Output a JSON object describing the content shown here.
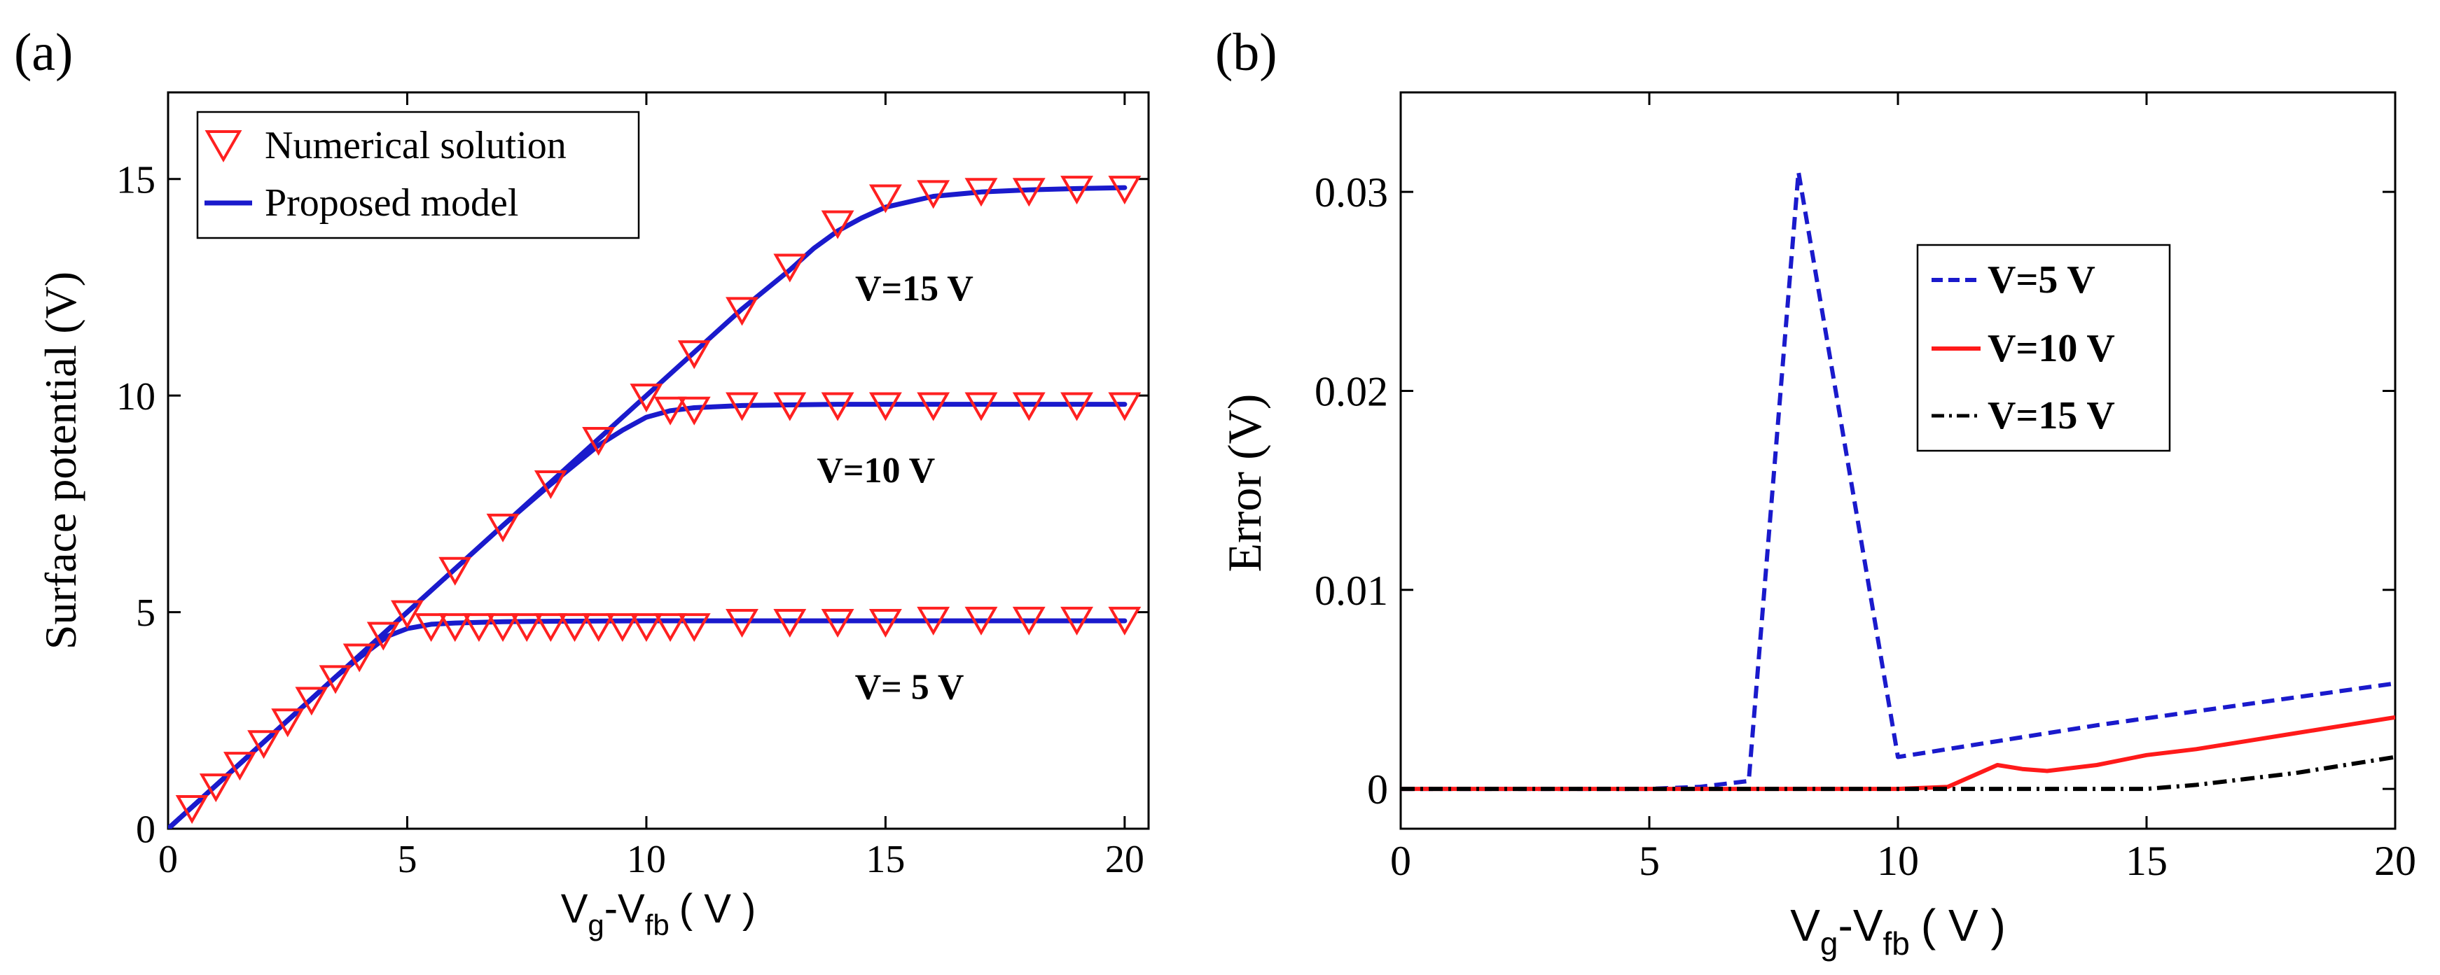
{
  "figure": {
    "panel_labels": [
      "(a)",
      "(b)"
    ]
  },
  "chart_data": [
    {
      "id": "a",
      "type": "line",
      "ylabel": "Surface potential (V)",
      "xlabel": {
        "main": "V",
        "sub1": "g",
        "dash": "-V",
        "sub2": "fb",
        "unit": "( V )"
      },
      "xlim": [
        0,
        20.5
      ],
      "ylim": [
        0,
        17
      ],
      "xticks": [
        0,
        5,
        10,
        15,
        20
      ],
      "yticks": [
        0,
        5,
        10,
        15
      ],
      "grid": false,
      "legend": {
        "placement": "top-left",
        "entries": [
          {
            "label": "Numerical solution",
            "marker": "triangle-down",
            "color": "#ff2020"
          },
          {
            "label": "Proposed model",
            "marker": "line",
            "color": "#1a1acc"
          }
        ]
      },
      "annotations": [
        {
          "text": "V=15 V",
          "x": 15.6,
          "y": 12.2
        },
        {
          "text": "V=10 V",
          "x": 14.8,
          "y": 8.0
        },
        {
          "text": "V= 5 V",
          "x": 15.5,
          "y": 3.0
        }
      ],
      "series": [
        {
          "name": "Numerical solution",
          "role": "markers",
          "color": "#ff2020",
          "group": "V=5 V",
          "x": [
            0.5,
            1,
            1.5,
            2,
            2.5,
            3,
            3.5,
            4,
            4.5,
            5,
            5.5,
            6,
            6.5,
            7,
            7.5,
            8,
            8.5,
            9,
            9.5,
            10,
            10.5,
            11,
            12,
            13,
            14,
            15,
            16,
            17,
            18,
            19,
            20
          ],
          "y": [
            0.5,
            1,
            1.5,
            2,
            2.5,
            3,
            3.5,
            4,
            4.5,
            5,
            4.7,
            4.7,
            4.7,
            4.7,
            4.7,
            4.7,
            4.7,
            4.7,
            4.7,
            4.7,
            4.7,
            4.7,
            4.8,
            4.8,
            4.8,
            4.8,
            4.85,
            4.85,
            4.85,
            4.85,
            4.85
          ]
        },
        {
          "name": "Numerical solution",
          "role": "markers",
          "color": "#ff2020",
          "group": "V=10 V",
          "x": [
            6,
            7,
            8,
            9,
            10,
            10.5,
            11,
            12,
            13,
            14,
            15,
            16,
            17,
            18,
            19,
            20
          ],
          "y": [
            6,
            7,
            8,
            9,
            10,
            9.7,
            9.7,
            9.8,
            9.8,
            9.8,
            9.8,
            9.8,
            9.8,
            9.8,
            9.8,
            9.8
          ]
        },
        {
          "name": "Numerical solution",
          "role": "markers",
          "color": "#ff2020",
          "group": "V=15 V",
          "x": [
            11,
            12,
            13,
            14,
            15,
            16,
            17,
            18,
            19,
            20
          ],
          "y": [
            11,
            12,
            13,
            14,
            14.6,
            14.7,
            14.75,
            14.75,
            14.8,
            14.8
          ]
        },
        {
          "name": "Proposed model",
          "role": "line",
          "color": "#1a1acc",
          "group": "V=5 V",
          "x": [
            0,
            1,
            2,
            3,
            3.5,
            4,
            4.3,
            4.6,
            5,
            5.5,
            6,
            7,
            8,
            10,
            12,
            15,
            20
          ],
          "y": [
            0,
            1,
            2,
            3,
            3.5,
            3.95,
            4.2,
            4.45,
            4.62,
            4.72,
            4.75,
            4.78,
            4.79,
            4.8,
            4.8,
            4.8,
            4.8
          ]
        },
        {
          "name": "Proposed model",
          "role": "line",
          "color": "#1a1acc",
          "group": "V=10 V",
          "x": [
            0,
            4,
            5,
            6,
            7,
            8,
            8.5,
            9,
            9.5,
            10,
            10.5,
            11,
            12,
            14,
            20
          ],
          "y": [
            0,
            4,
            5,
            6,
            7,
            7.95,
            8.4,
            8.85,
            9.2,
            9.5,
            9.65,
            9.72,
            9.77,
            9.8,
            9.8
          ]
        },
        {
          "name": "Proposed model",
          "role": "line",
          "color": "#1a1acc",
          "group": "V=15 V",
          "x": [
            0,
            5,
            10,
            11,
            12,
            13,
            13.5,
            14,
            14.5,
            15,
            16,
            17,
            18,
            19,
            20
          ],
          "y": [
            0,
            5,
            10,
            11,
            12,
            12.9,
            13.4,
            13.8,
            14.1,
            14.35,
            14.6,
            14.7,
            14.75,
            14.78,
            14.8
          ]
        }
      ]
    },
    {
      "id": "b",
      "type": "line",
      "ylabel": "Error (V)",
      "xlabel": {
        "main": "V",
        "sub1": "g",
        "dash": "-V",
        "sub2": "fb",
        "unit": "( V )"
      },
      "xlim": [
        0,
        20
      ],
      "ylim": [
        -0.002,
        0.035
      ],
      "xticks": [
        0,
        5,
        10,
        15,
        20
      ],
      "yticks": [
        0,
        0.01,
        0.02,
        0.03
      ],
      "ytick_labels": [
        "0",
        "0.01",
        "0.02",
        "0.03"
      ],
      "grid": false,
      "legend": {
        "placement": "top-right",
        "entries": [
          {
            "label": "V=5 V",
            "style": "dashed",
            "color": "#1a1acc"
          },
          {
            "label": "V=10 V",
            "style": "solid",
            "color": "#ff1a1a"
          },
          {
            "label": "V=15 V",
            "style": "dashdot",
            "color": "#000000"
          }
        ]
      },
      "series": [
        {
          "name": "V=5 V",
          "style": "dashed",
          "color": "#1a1acc",
          "x": [
            0,
            5,
            6,
            7,
            8,
            10,
            12,
            14,
            16,
            18,
            20
          ],
          "y": [
            0,
            0,
            0.0001,
            0.0004,
            0.031,
            0.0016,
            0.0024,
            0.0032,
            0.0039,
            0.0046,
            0.0053
          ]
        },
        {
          "name": "V=10 V",
          "style": "solid",
          "color": "#ff1a1a",
          "x": [
            0,
            10,
            11,
            12,
            12.5,
            13,
            14,
            15,
            16,
            17,
            18,
            19,
            20
          ],
          "y": [
            0,
            0,
            0.0001,
            0.0012,
            0.001,
            0.0009,
            0.0012,
            0.0017,
            0.002,
            0.0024,
            0.0028,
            0.0032,
            0.0036
          ]
        },
        {
          "name": "V=15 V",
          "style": "dashdot",
          "color": "#000000",
          "x": [
            0,
            15,
            16,
            17,
            18,
            19,
            20
          ],
          "y": [
            0,
            0,
            0.0002,
            0.0005,
            0.0008,
            0.0012,
            0.0016
          ]
        }
      ]
    }
  ]
}
